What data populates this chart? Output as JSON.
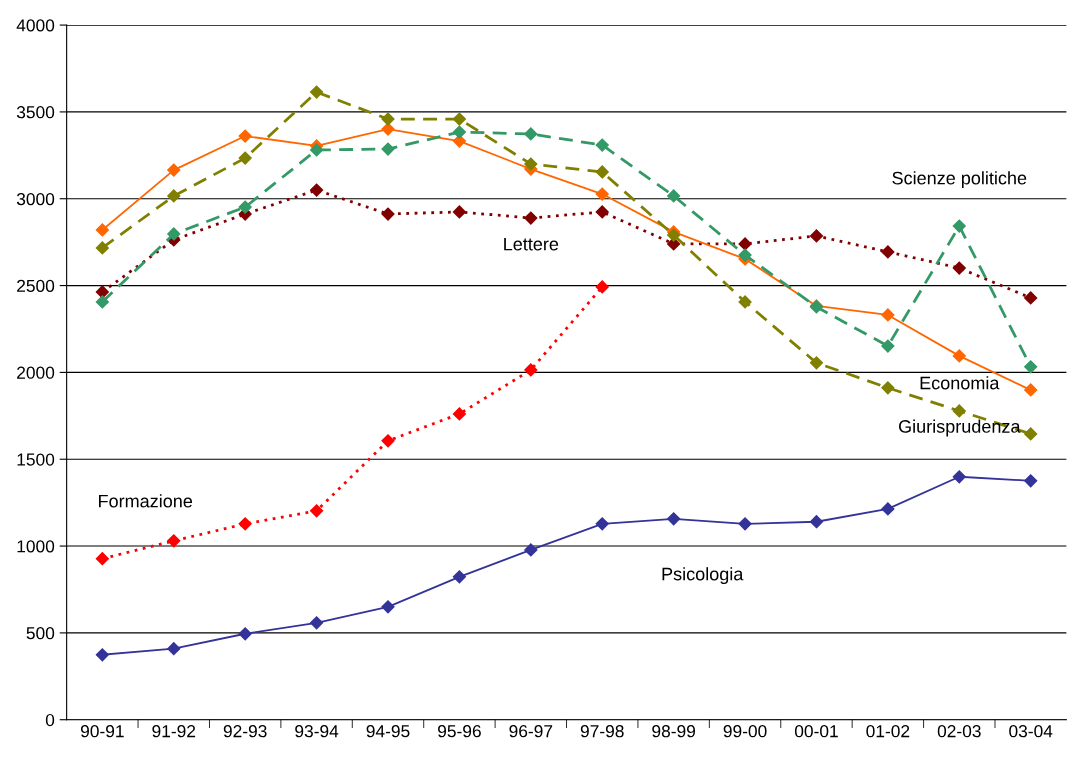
{
  "chart_data": {
    "type": "line",
    "categories": [
      "90-91",
      "91-92",
      "92-93",
      "93-94",
      "94-95",
      "95-96",
      "96-97",
      "97-98",
      "98-99",
      "99-00",
      "00-01",
      "01-02",
      "02-03",
      "03-04"
    ],
    "ylim": [
      0,
      4000
    ],
    "yticks": [
      0,
      500,
      1000,
      1500,
      2000,
      2500,
      3000,
      3500,
      4000
    ],
    "grid": "y",
    "legend": false,
    "marker": "diamond",
    "series": [
      {
        "name": "Psicologia",
        "color": "#333399",
        "line_style": "solid",
        "values": [
          374,
          409,
          495,
          558,
          650,
          823,
          978,
          1128,
          1157,
          1128,
          1140,
          1214,
          1399,
          1376
        ]
      },
      {
        "name": "Formazione",
        "color": "#ff0000",
        "line_style": "dotted",
        "values": [
          927,
          1030,
          1128,
          1203,
          1606,
          1761,
          2014,
          2492,
          null,
          null,
          null,
          null,
          null,
          null
        ]
      },
      {
        "name": "Lettere",
        "color": "#800000",
        "line_style": "dotted",
        "values": [
          2463,
          2763,
          2912,
          3050,
          2912,
          2924,
          2889,
          2924,
          2740,
          2740,
          2786,
          2694,
          2601,
          2429
        ]
      },
      {
        "name": "Economia",
        "color": "#ff6600",
        "line_style": "solid",
        "values": [
          2820,
          3165,
          3361,
          3304,
          3401,
          3332,
          3171,
          3027,
          2809,
          2653,
          2383,
          2331,
          2095,
          1899
        ]
      },
      {
        "name": "Giurisprudenza",
        "color": "#808000",
        "line_style": "dashed",
        "values": [
          2717,
          3016,
          3234,
          3614,
          3459,
          3459,
          3200,
          3154,
          2791,
          2406,
          2055,
          1911,
          1778,
          1646
        ]
      },
      {
        "name": "Scienze politiche",
        "color": "#339966",
        "line_style": "dashed",
        "values": [
          2406,
          2797,
          2952,
          3281,
          3286,
          3384,
          3373,
          3309,
          3016,
          2676,
          2377,
          2152,
          2843,
          2032
        ]
      }
    ]
  }
}
